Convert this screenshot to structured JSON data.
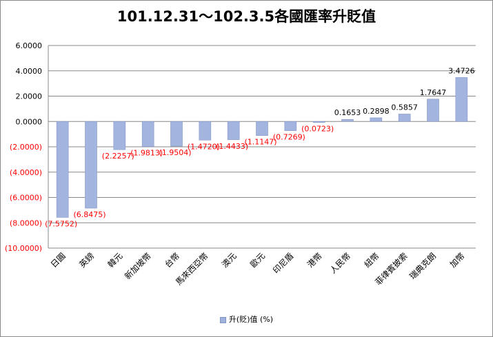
{
  "chart_data": {
    "type": "bar",
    "title": "101.12.31～102.3.5各國匯率升貶值",
    "categories": [
      "日圓",
      "英鎊",
      "韓元",
      "新加坡幣",
      "台幣",
      "馬來西亞幣",
      "澳元",
      "歐元",
      "印尼盾",
      "港幣",
      "人民幣",
      "紐幣",
      "菲律賓披索",
      "瑞典克朗",
      "加幣"
    ],
    "series": [
      {
        "name": "升(貶)值 (%)",
        "values": [
          -7.5752,
          -6.8475,
          -2.2257,
          -1.9813,
          -1.9504,
          -1.472,
          -1.4433,
          -1.1147,
          -0.7269,
          -0.0723,
          0.1653,
          0.2898,
          0.5857,
          1.7647,
          3.4726
        ],
        "labels": [
          "(7.5752)",
          "(6.8475)",
          "(2.2257)",
          "(1.9813)",
          "(1.9504)",
          "(1.4720)",
          "(1.4433)",
          "(1.1147)",
          "(0.7269)",
          "(0.0723)",
          "0.1653",
          "0.2898",
          "0.5857",
          "1.7647",
          "3.4726"
        ]
      }
    ],
    "ylim": [
      -10,
      6
    ],
    "yticks": [
      "6.0000",
      "4.0000",
      "2.0000",
      "0.0000",
      "(2.0000)",
      "(4.0000)",
      "(6.0000)",
      "(8.0000)",
      "(10.0000)"
    ],
    "grid": true,
    "legend_position": "bottom",
    "colors": {
      "bar_fill": "#a3b4de",
      "bar_stroke": "#8496c8",
      "negative_text": "#ff0000",
      "grid": "#888888"
    }
  }
}
